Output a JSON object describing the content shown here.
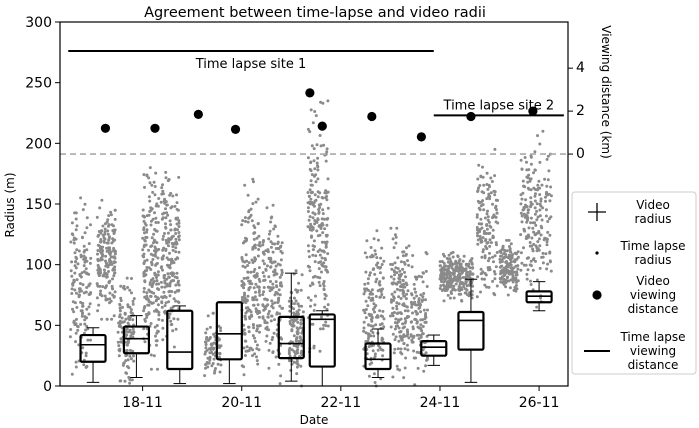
{
  "chart_data": {
    "type": "scatter",
    "title": "Agreement between time-lapse and video radii",
    "xlabel": "Date",
    "ylabel": "Radius (m)",
    "y2label": "Viewing distance (km)",
    "ylim": [
      0,
      300
    ],
    "y2lim": [
      -10.8,
      6.15
    ],
    "xlim": [
      "2021-11-16T08:00",
      "2021-11-26T14:00"
    ],
    "xtick_dates": [
      "2021-11-18",
      "2021-11-20",
      "2021-11-22",
      "2021-11-24",
      "2021-11-26"
    ],
    "xtick_labels": [
      "18-11",
      "20-11",
      "22-11",
      "24-11",
      "26-11"
    ],
    "yticks": [
      0,
      50,
      100,
      150,
      200,
      250,
      300
    ],
    "y2ticks": [
      0,
      2,
      4
    ],
    "reference_line": {
      "axis": "y2",
      "value": 0,
      "style": "dashed"
    },
    "legend": {
      "placement": "right, outside",
      "entries": [
        "Video radius",
        "Time lapse radius",
        "Video viewing distance",
        "Time lapse viewing distance"
      ]
    },
    "annotations": [
      "Time lapse site 1",
      "Time lapse site 2"
    ],
    "time_lapse_viewing_distance": [
      {
        "label": "Time lapse site 1",
        "start": "2021-11-16T12:00",
        "end": "2021-11-23T21:00",
        "value_km": 4.8
      },
      {
        "label": "Time lapse site 2",
        "start": "2021-11-23T21:00",
        "end": "2021-11-26T12:00",
        "value_km": 1.8
      }
    ],
    "video_viewing_distance": [
      {
        "date": "2021-11-17T06:00",
        "km": 1.2
      },
      {
        "date": "2021-11-18T06:00",
        "km": 1.2
      },
      {
        "date": "2021-11-19T03:00",
        "km": 1.85
      },
      {
        "date": "2021-11-19T21:00",
        "km": 1.15
      },
      {
        "date": "2021-11-21T09:00",
        "km": 2.85
      },
      {
        "date": "2021-11-21T15:00",
        "km": 1.3
      },
      {
        "date": "2021-11-22T15:00",
        "km": 1.75
      },
      {
        "date": "2021-11-23T15:00",
        "km": 0.8
      },
      {
        "date": "2021-11-24T15:00",
        "km": 1.75
      },
      {
        "date": "2021-11-25T21:00",
        "km": 2.0
      }
    ],
    "video_radius_boxes": [
      {
        "date": "2021-11-17T00:00",
        "whislo": 3,
        "q1": 20,
        "med": 34,
        "q3": 42,
        "whishi": 48
      },
      {
        "date": "2021-11-17T21:00",
        "whislo": 7,
        "q1": 27,
        "med": 39,
        "q3": 49,
        "whishi": 58
      },
      {
        "date": "2021-11-18T18:00",
        "whislo": 2,
        "q1": 14,
        "med": 28,
        "q3": 62,
        "whishi": 66
      },
      {
        "date": "2021-11-19T18:00",
        "whislo": 2,
        "q1": 22,
        "med": 43,
        "q3": 69,
        "whishi": 69
      },
      {
        "date": "2021-11-21T00:00",
        "whislo": 4,
        "q1": 23,
        "med": 35,
        "q3": 57,
        "whishi": 93
      },
      {
        "date": "2021-11-21T15:00",
        "whislo": 0,
        "q1": 16,
        "med": 55,
        "q3": 59,
        "whishi": 62
      },
      {
        "date": "2021-11-22T18:00",
        "whislo": 7,
        "q1": 14,
        "med": 22,
        "q3": 35,
        "whishi": 47
      },
      {
        "date": "2021-11-23T21:00",
        "whislo": 17,
        "q1": 25,
        "med": 32,
        "q3": 37,
        "whishi": 42
      },
      {
        "date": "2021-11-24T15:00",
        "whislo": 3,
        "q1": 30,
        "med": 54,
        "q3": 61,
        "whishi": 88
      },
      {
        "date": "2021-11-26T00:00",
        "whislo": 62,
        "q1": 69,
        "med": 74,
        "q3": 78,
        "whishi": 86
      }
    ],
    "time_lapse_radius_clusters": [
      {
        "start": "2021-11-16T13:00",
        "end": "2021-11-16T23:00",
        "low": 5,
        "high": 155,
        "n": 150
      },
      {
        "start": "2021-11-17T02:00",
        "end": "2021-11-17T11:00",
        "low": 55,
        "high": 155,
        "n": 180
      },
      {
        "start": "2021-11-17T12:00",
        "end": "2021-11-17T20:00",
        "low": 0,
        "high": 90,
        "n": 130
      },
      {
        "start": "2021-11-18T00:00",
        "end": "2021-11-18T08:00",
        "low": 5,
        "high": 180,
        "n": 190
      },
      {
        "start": "2021-11-18T09:00",
        "end": "2021-11-18T18:00",
        "low": 20,
        "high": 185,
        "n": 200
      },
      {
        "start": "2021-11-19T06:00",
        "end": "2021-11-19T14:00",
        "low": 0,
        "high": 60,
        "n": 80
      },
      {
        "start": "2021-11-20T00:00",
        "end": "2021-11-20T09:00",
        "low": 0,
        "high": 175,
        "n": 190
      },
      {
        "start": "2021-11-20T10:00",
        "end": "2021-11-20T20:00",
        "low": 0,
        "high": 155,
        "n": 170
      },
      {
        "start": "2021-11-20T23:00",
        "end": "2021-11-21T06:00",
        "low": 0,
        "high": 95,
        "n": 130
      },
      {
        "start": "2021-11-21T08:00",
        "end": "2021-11-21T18:00",
        "low": 20,
        "high": 235,
        "n": 210
      },
      {
        "start": "2021-11-22T11:00",
        "end": "2021-11-22T21:00",
        "low": 0,
        "high": 135,
        "n": 160
      },
      {
        "start": "2021-11-23T00:00",
        "end": "2021-11-23T09:00",
        "low": 0,
        "high": 130,
        "n": 160
      },
      {
        "start": "2021-11-23T10:00",
        "end": "2021-11-23T18:00",
        "low": 0,
        "high": 110,
        "n": 120
      },
      {
        "start": "2021-11-24T00:00",
        "end": "2021-11-24T16:00",
        "low": 70,
        "high": 112,
        "n": 260
      },
      {
        "start": "2021-11-24T18:00",
        "end": "2021-11-25T04:00",
        "low": 60,
        "high": 195,
        "n": 150
      },
      {
        "start": "2021-11-25T05:00",
        "end": "2021-11-25T14:00",
        "low": 75,
        "high": 120,
        "n": 150
      },
      {
        "start": "2021-11-25T15:00",
        "end": "2021-11-26T06:00",
        "low": 65,
        "high": 210,
        "n": 200
      }
    ]
  }
}
